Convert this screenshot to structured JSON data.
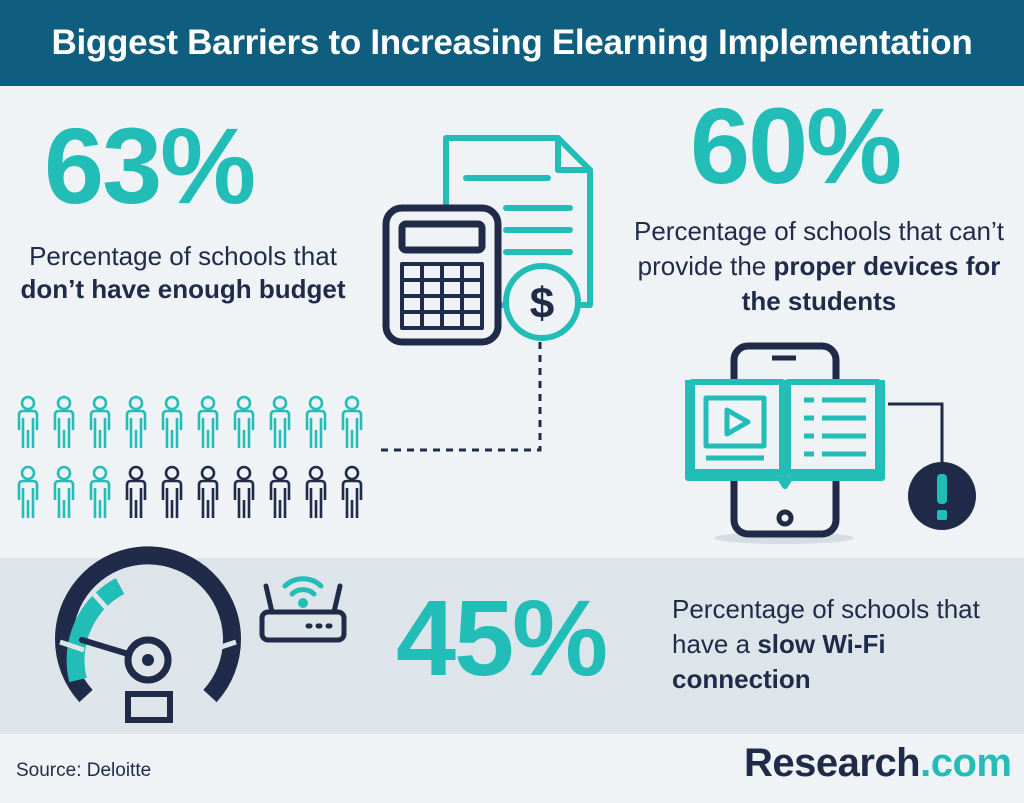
{
  "title": "Biggest Barriers to Increasing Elearning Implementation",
  "colors": {
    "header_bg": "#0f5e7f",
    "accent": "#23bdb7",
    "navy": "#1f2b48",
    "background": "#eff3f6",
    "band": "#dde4ea"
  },
  "stat_budget": {
    "value": "63%",
    "text_plain": "Percentage of schools that",
    "text_bold": "don’t have enough budget"
  },
  "stat_devices": {
    "value": "60%",
    "text_plain": "Percentage of schools that can’t provide the",
    "text_bold": "proper devices for the students"
  },
  "stat_wifi": {
    "value": "45%",
    "text_plain": "Percentage of schools that have a",
    "text_bold": "slow Wi-Fi connection"
  },
  "people_grid": {
    "total": 20,
    "highlighted": 13,
    "highlight_color": "#23bdb7",
    "other_color": "#1f2b48"
  },
  "icons": {
    "budget": [
      "calculator-icon",
      "document-icon",
      "dollar-coin-icon"
    ],
    "devices": [
      "smartphone-icon",
      "open-book-icon",
      "play-icon",
      "exclamation-icon"
    ],
    "wifi": [
      "speedometer-icon",
      "router-icon",
      "wifi-signal-icon"
    ]
  },
  "footer": {
    "source": "Source: Deloitte",
    "logo_brand": "Research",
    "logo_tld": ".com"
  }
}
